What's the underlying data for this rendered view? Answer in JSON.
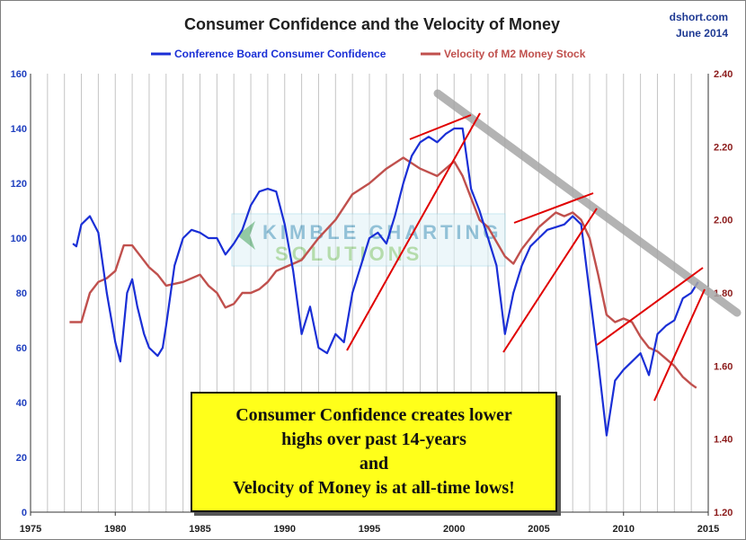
{
  "chart_data": {
    "type": "line",
    "title": "Consumer Confidence and the Velocity of Money",
    "source": "dshort.com",
    "date": "June 2014",
    "x_ticks": [
      "1975",
      "1980",
      "1985",
      "1990",
      "1995",
      "2000",
      "2005",
      "2010",
      "2015"
    ],
    "xlim": [
      1975,
      2015
    ],
    "y_left": {
      "ticks": [
        "0",
        "20",
        "40",
        "60",
        "80",
        "100",
        "120",
        "140",
        "160"
      ],
      "lim": [
        0,
        160
      ],
      "color": "#1f3fbf"
    },
    "y_right": {
      "ticks": [
        "1.20",
        "1.40",
        "1.60",
        "1.80",
        "2.00",
        "2.20",
        "2.40"
      ],
      "lim": [
        1.2,
        2.4
      ],
      "color": "#8b1a1a"
    },
    "grid": "vertical yearly",
    "legend": "top-center",
    "series": [
      {
        "name": "Conference Board Consumer Confidence",
        "axis": "left",
        "color": "#1a2fd6",
        "points": [
          [
            1977.5,
            98
          ],
          [
            1977.7,
            97
          ],
          [
            1978,
            105
          ],
          [
            1978.5,
            108
          ],
          [
            1979,
            102
          ],
          [
            1979.5,
            80
          ],
          [
            1980,
            62
          ],
          [
            1980.3,
            55
          ],
          [
            1980.7,
            80
          ],
          [
            1981,
            85
          ],
          [
            1981.3,
            75
          ],
          [
            1981.7,
            65
          ],
          [
            1982,
            60
          ],
          [
            1982.5,
            57
          ],
          [
            1982.8,
            60
          ],
          [
            1983,
            68
          ],
          [
            1983.5,
            90
          ],
          [
            1984,
            100
          ],
          [
            1984.5,
            103
          ],
          [
            1985,
            102
          ],
          [
            1985.5,
            100
          ],
          [
            1986,
            100
          ],
          [
            1986.5,
            94
          ],
          [
            1987,
            98
          ],
          [
            1987.5,
            103
          ],
          [
            1988,
            112
          ],
          [
            1988.5,
            117
          ],
          [
            1989,
            118
          ],
          [
            1989.5,
            117
          ],
          [
            1990,
            105
          ],
          [
            1990.5,
            88
          ],
          [
            1991,
            65
          ],
          [
            1991.5,
            75
          ],
          [
            1992,
            60
          ],
          [
            1992.5,
            58
          ],
          [
            1993,
            65
          ],
          [
            1993.5,
            62
          ],
          [
            1994,
            80
          ],
          [
            1994.5,
            90
          ],
          [
            1995,
            100
          ],
          [
            1995.5,
            102
          ],
          [
            1996,
            98
          ],
          [
            1996.5,
            108
          ],
          [
            1997,
            120
          ],
          [
            1997.5,
            130
          ],
          [
            1998,
            135
          ],
          [
            1998.5,
            137
          ],
          [
            1999,
            135
          ],
          [
            1999.5,
            138
          ],
          [
            2000,
            140
          ],
          [
            2000.5,
            140
          ],
          [
            2001,
            118
          ],
          [
            2001.5,
            110
          ],
          [
            2002,
            100
          ],
          [
            2002.5,
            90
          ],
          [
            2003,
            65
          ],
          [
            2003.5,
            80
          ],
          [
            2004,
            90
          ],
          [
            2004.5,
            97
          ],
          [
            2005,
            100
          ],
          [
            2005.5,
            103
          ],
          [
            2006,
            104
          ],
          [
            2006.5,
            105
          ],
          [
            2007,
            108
          ],
          [
            2007.5,
            105
          ],
          [
            2008,
            80
          ],
          [
            2008.5,
            55
          ],
          [
            2009,
            28
          ],
          [
            2009.5,
            48
          ],
          [
            2010,
            52
          ],
          [
            2010.5,
            55
          ],
          [
            2011,
            58
          ],
          [
            2011.5,
            50
          ],
          [
            2012,
            65
          ],
          [
            2012.5,
            68
          ],
          [
            2013,
            70
          ],
          [
            2013.5,
            78
          ],
          [
            2014,
            80
          ],
          [
            2014.4,
            84
          ]
        ]
      },
      {
        "name": "Velocity of M2 Money Stock",
        "axis": "right",
        "color": "#c0504d",
        "points": [
          [
            1977.3,
            1.72
          ],
          [
            1978,
            1.72
          ],
          [
            1978.5,
            1.8
          ],
          [
            1979,
            1.83
          ],
          [
            1979.5,
            1.84
          ],
          [
            1980,
            1.86
          ],
          [
            1980.5,
            1.93
          ],
          [
            1981,
            1.93
          ],
          [
            1981.5,
            1.9
          ],
          [
            1982,
            1.87
          ],
          [
            1982.5,
            1.85
          ],
          [
            1983,
            1.82
          ],
          [
            1984,
            1.83
          ],
          [
            1985,
            1.85
          ],
          [
            1985.5,
            1.82
          ],
          [
            1986,
            1.8
          ],
          [
            1986.5,
            1.76
          ],
          [
            1987,
            1.77
          ],
          [
            1987.5,
            1.8
          ],
          [
            1988,
            1.8
          ],
          [
            1988.5,
            1.81
          ],
          [
            1989,
            1.83
          ],
          [
            1989.5,
            1.86
          ],
          [
            1990,
            1.87
          ],
          [
            1990.5,
            1.88
          ],
          [
            1991,
            1.89
          ],
          [
            1992,
            1.95
          ],
          [
            1993,
            2.0
          ],
          [
            1994,
            2.07
          ],
          [
            1995,
            2.1
          ],
          [
            1996,
            2.14
          ],
          [
            1997,
            2.17
          ],
          [
            1998,
            2.14
          ],
          [
            1999,
            2.12
          ],
          [
            2000,
            2.16
          ],
          [
            2000.5,
            2.12
          ],
          [
            2001,
            2.06
          ],
          [
            2001.5,
            2.0
          ],
          [
            2002,
            1.98
          ],
          [
            2002.5,
            1.94
          ],
          [
            2003,
            1.9
          ],
          [
            2003.5,
            1.88
          ],
          [
            2004,
            1.92
          ],
          [
            2004.5,
            1.95
          ],
          [
            2005,
            1.98
          ],
          [
            2005.5,
            2.0
          ],
          [
            2006,
            2.02
          ],
          [
            2006.5,
            2.01
          ],
          [
            2007,
            2.02
          ],
          [
            2007.5,
            2.0
          ],
          [
            2008,
            1.95
          ],
          [
            2008.5,
            1.85
          ],
          [
            2009,
            1.74
          ],
          [
            2009.5,
            1.72
          ],
          [
            2010,
            1.73
          ],
          [
            2010.5,
            1.72
          ],
          [
            2011,
            1.68
          ],
          [
            2011.5,
            1.65
          ],
          [
            2012,
            1.64
          ],
          [
            2012.5,
            1.62
          ],
          [
            2013,
            1.6
          ],
          [
            2013.5,
            1.57
          ],
          [
            2014,
            1.55
          ],
          [
            2014.3,
            1.54
          ]
        ]
      }
    ]
  },
  "watermark": {
    "line1": "KIMBLE CHARTING",
    "line2": "SOLUTIONS"
  },
  "callout": {
    "lines": [
      "Consumer Confidence creates lower",
      "highs over past 14-years",
      "and",
      "Velocity of Money is at all-time lows!"
    ]
  }
}
